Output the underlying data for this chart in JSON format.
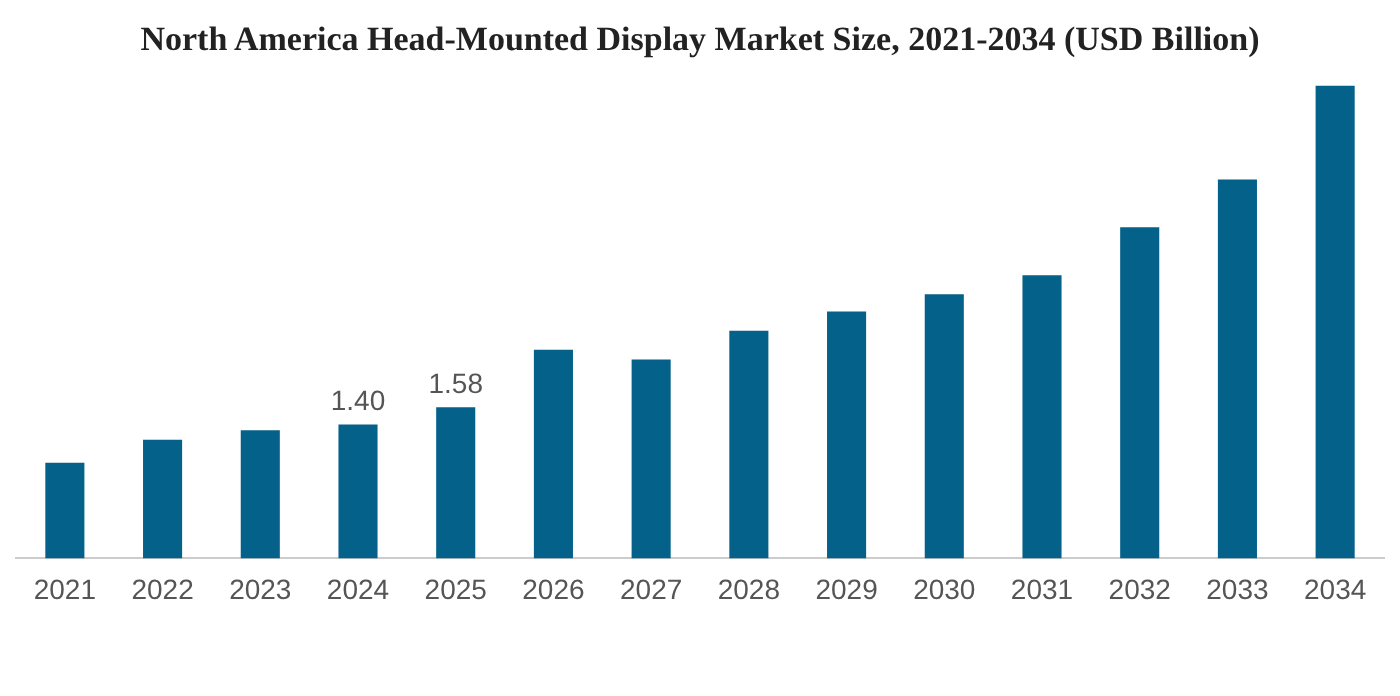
{
  "chart_data": {
    "type": "bar",
    "title": "North America Head-Mounted Display Market Size, 2021-2034 (USD Billion)",
    "categories": [
      "2021",
      "2022",
      "2023",
      "2024",
      "2025",
      "2026",
      "2027",
      "2028",
      "2029",
      "2030",
      "2031",
      "2032",
      "2033",
      "2034"
    ],
    "values": [
      1.0,
      1.24,
      1.34,
      1.4,
      1.58,
      2.18,
      2.08,
      2.38,
      2.58,
      2.76,
      2.96,
      3.46,
      3.96,
      4.94
    ],
    "value_labels": [
      null,
      null,
      null,
      "1.40",
      "1.58",
      null,
      null,
      null,
      null,
      null,
      null,
      null,
      null,
      null
    ],
    "color": "#04628a",
    "grid": false,
    "legend": false
  }
}
